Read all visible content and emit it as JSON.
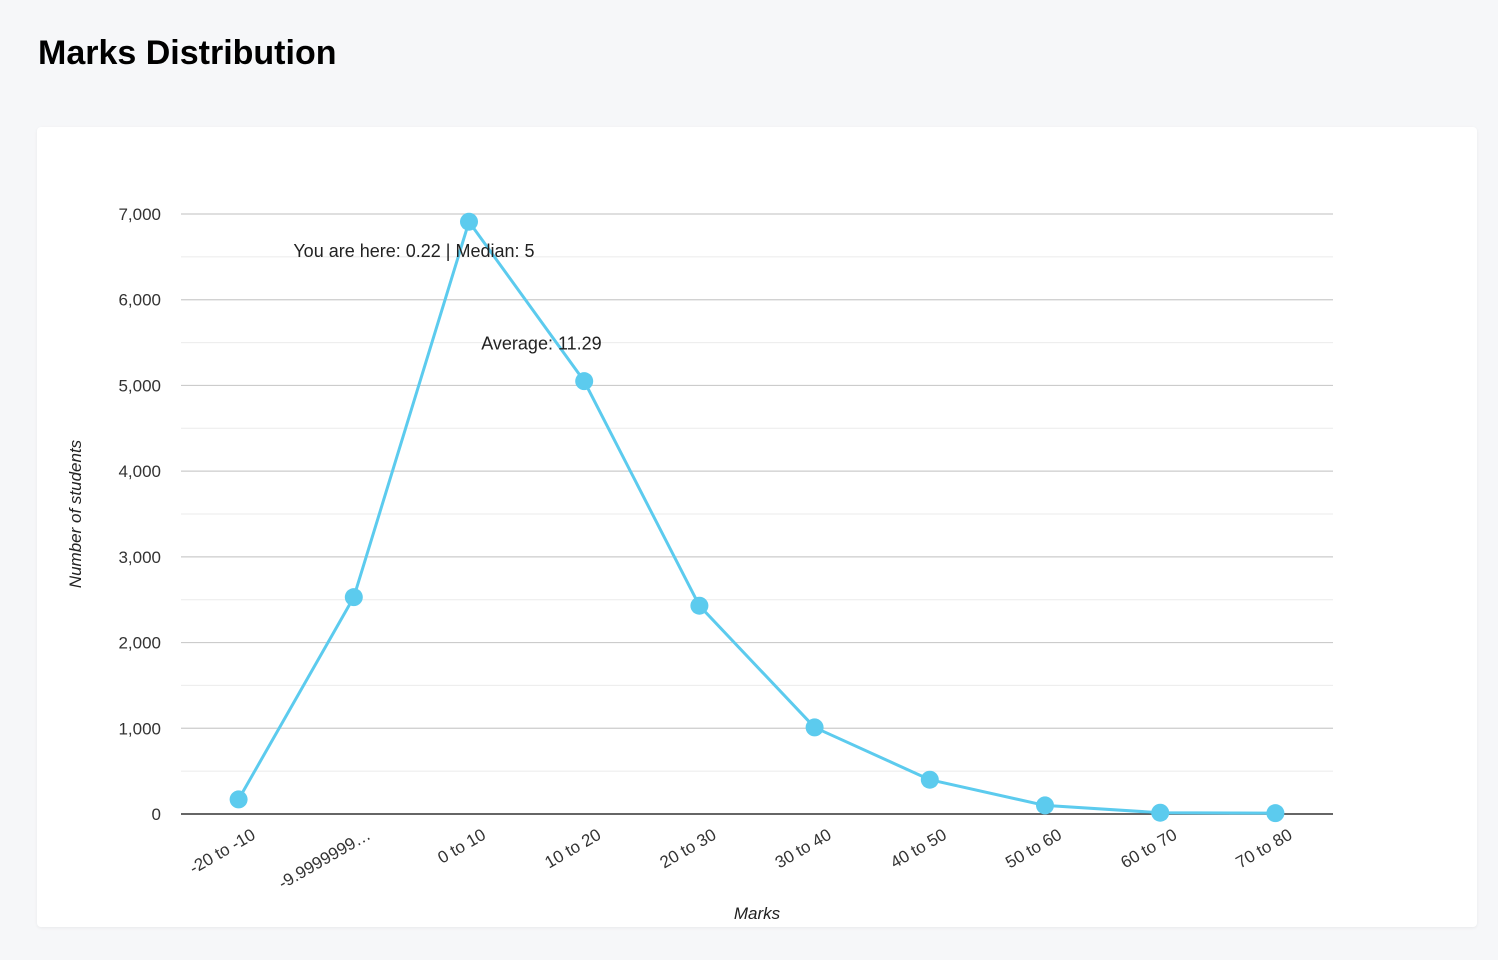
{
  "page": {
    "title": "Marks Distribution"
  },
  "chart_data": {
    "type": "line",
    "categories": [
      "-20 to -10",
      "-9.9999999…",
      "0 to 10",
      "10 to 20",
      "20 to 30",
      "30 to 40",
      "40 to 50",
      "50 to 60",
      "60 to 70",
      "70 to 80"
    ],
    "series": [
      {
        "values": [
          170,
          2530,
          6910,
          5050,
          2430,
          1010,
          400,
          100,
          15,
          10
        ],
        "color": "#5ccbee"
      }
    ],
    "xlabel": "Marks",
    "ylabel": "Number of students",
    "ylim": [
      0,
      7000
    ],
    "yticks": [
      0,
      1000,
      2000,
      3000,
      4000,
      5000,
      6000,
      7000
    ],
    "ytick_labels": [
      "0",
      "1,000",
      "2,000",
      "3,000",
      "4,000",
      "5,000",
      "6,000",
      "7,000"
    ],
    "grid": true,
    "annotations": [
      {
        "text": "You are here: 0.22 | Median: 5",
        "x": 0.22,
        "y": 6500
      },
      {
        "text": "Average: 11.29",
        "x": 11.29,
        "y": 5420
      }
    ]
  }
}
